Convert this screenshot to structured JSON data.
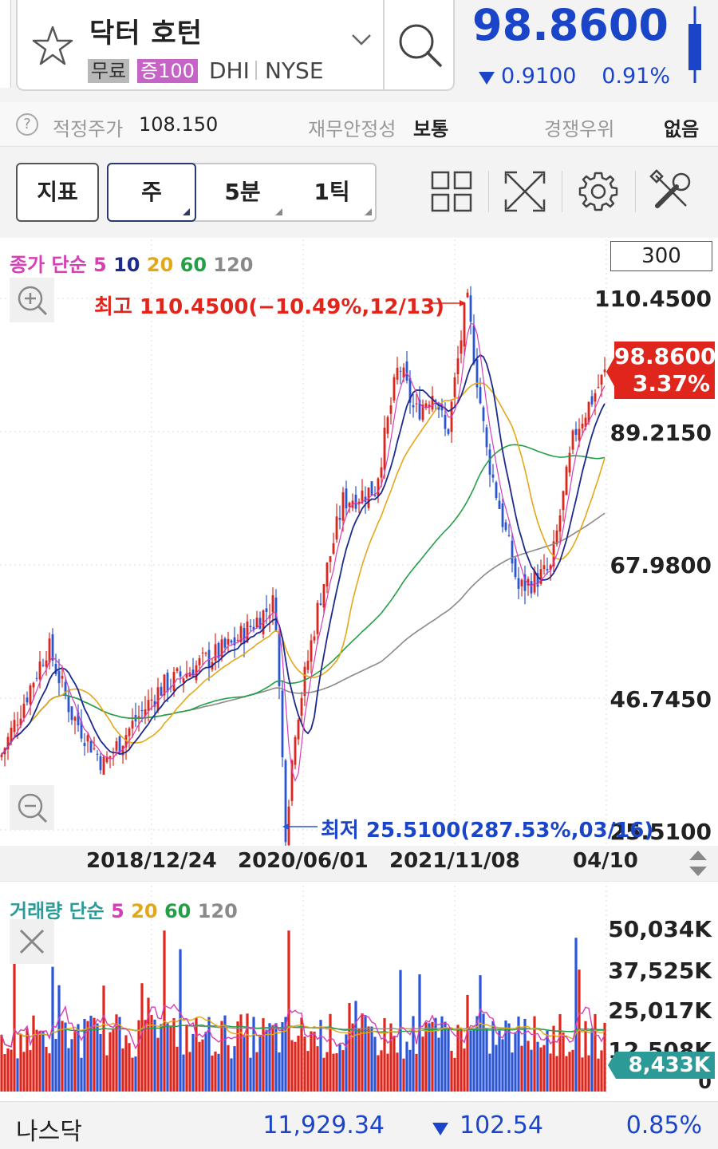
{
  "header": {
    "stock_name": "닥터 호턴",
    "badge_free": "무료",
    "badge_margin": "증100",
    "ticker": "DHI",
    "exchange": "NYSE",
    "price": "98.8600",
    "change_abs": "0.9100",
    "change_pct": "0.91%",
    "price_color": "#1b45c9"
  },
  "info": {
    "fair_price_label": "적정주가",
    "fair_price_value": "108.150",
    "stability_label": "재무안정성",
    "stability_value": "보통",
    "competitive_label": "경쟁우위",
    "competitive_value": "없음"
  },
  "toolbar": {
    "indicator_label": "지표",
    "periods": [
      "주",
      "5분",
      "1틱"
    ]
  },
  "chart": {
    "range_value": "300",
    "price_legend": {
      "label": "종가 단순",
      "periods": [
        "5",
        "10",
        "20",
        "60",
        "120"
      ]
    },
    "volume_legend": {
      "label": "거래량 단순",
      "periods": [
        "5",
        "20",
        "60",
        "120"
      ]
    },
    "high_note": "최고 110.4500(−10.49%,12/13)",
    "low_note": "최저 25.5100(287.53%,03/16)",
    "price_axis": [
      "110.4500",
      "89.2150",
      "67.9800",
      "46.7450",
      "25.5100"
    ],
    "volume_axis": [
      "50,034K",
      "37,525K",
      "25,017K",
      "12,508K",
      "0"
    ],
    "dates": [
      "2018/12/24",
      "2020/06/01",
      "2021/11/08",
      "04/10"
    ],
    "current_price_tag": "98.8600",
    "current_pct_tag": "3.37%",
    "current_volume_tag": "8,433K",
    "colors": {
      "up": "#e0251c",
      "down": "#2a55d6",
      "ma5": "#d63fb5",
      "ma10": "#1c2a8c",
      "ma20": "#e2a81a",
      "ma60": "#23a045",
      "ma120": "#8a8a8a"
    }
  },
  "chart_data": {
    "type": "line",
    "title": "",
    "xlabel": "",
    "ylabel": "",
    "ylim": [
      25.51,
      110.45
    ],
    "x": [
      "2018/12/24",
      "2020/06/01",
      "2021/11/08",
      "04/10"
    ],
    "series": [
      {
        "name": "종가",
        "points": [
          [
            0,
            37
          ],
          [
            60,
            55
          ],
          [
            90,
            44
          ],
          [
            130,
            36
          ],
          [
            170,
            43
          ],
          [
            200,
            48
          ],
          [
            250,
            52
          ],
          [
            290,
            55
          ],
          [
            345,
            62
          ],
          [
            358,
            25.5
          ],
          [
            370,
            42
          ],
          [
            400,
            62
          ],
          [
            430,
            78
          ],
          [
            470,
            80
          ],
          [
            500,
            100
          ],
          [
            520,
            92
          ],
          [
            545,
            96
          ],
          [
            560,
            88
          ],
          [
            585,
            110.45
          ],
          [
            610,
            86
          ],
          [
            650,
            64
          ],
          [
            690,
            67
          ],
          [
            720,
            89
          ],
          [
            760,
            98.86
          ]
        ]
      }
    ],
    "volume_ylim": [
      0,
      50034
    ]
  },
  "market": {
    "name": "나스닥",
    "value": "11,929.34",
    "change": "102.54",
    "pct": "0.85%"
  }
}
